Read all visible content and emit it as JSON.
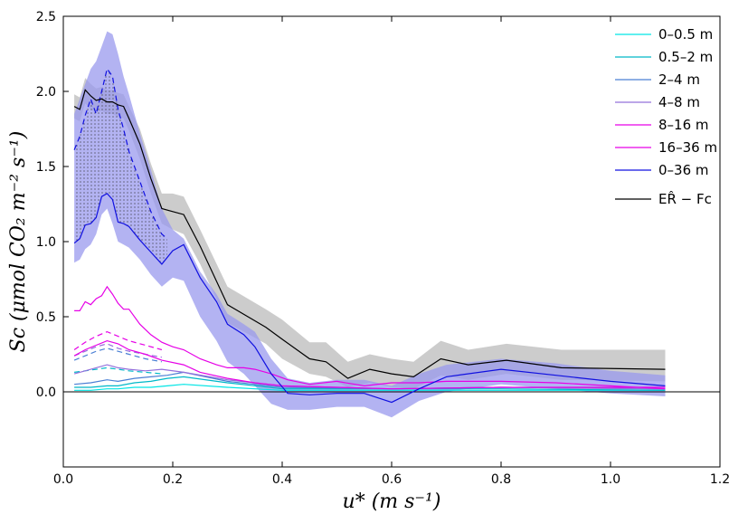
{
  "chart_data": {
    "type": "line",
    "xlabel": "u* (m s⁻¹)",
    "ylabel": "Sc (μmol CO₂ m⁻² s⁻¹)",
    "xlim": [
      0.0,
      1.2
    ],
    "ylim": [
      -0.5,
      2.5
    ],
    "xticks": [
      "0.0",
      "0.2",
      "0.4",
      "0.6",
      "0.8",
      "1.0",
      "1.2"
    ],
    "yticks": [
      "0.0",
      "0.5",
      "1.0",
      "1.5",
      "2.0",
      "2.5"
    ],
    "legend_position": "top-right",
    "zero_line": true,
    "series": [
      {
        "name": "0–0.5 m",
        "color": "#00e5e5",
        "style": "solid",
        "x": [
          0.02,
          0.05,
          0.08,
          0.1,
          0.13,
          0.16,
          0.19,
          0.22,
          0.3,
          0.4,
          0.6,
          0.8,
          1.1
        ],
        "y": [
          0.01,
          0.01,
          0.02,
          0.02,
          0.03,
          0.03,
          0.04,
          0.05,
          0.03,
          0.01,
          0.01,
          0.01,
          0.01
        ]
      },
      {
        "name": "0.5–2 m",
        "color": "#00b8c8",
        "style": "solid",
        "x": [
          0.02,
          0.05,
          0.08,
          0.1,
          0.13,
          0.16,
          0.19,
          0.22,
          0.3,
          0.4,
          0.6,
          0.8,
          1.1
        ],
        "y": [
          0.03,
          0.03,
          0.04,
          0.04,
          0.06,
          0.07,
          0.09,
          0.1,
          0.06,
          0.02,
          0.02,
          0.02,
          0.01
        ]
      },
      {
        "name": "2–4 m",
        "color": "#4a7fd4",
        "style": "solid",
        "x": [
          0.02,
          0.05,
          0.08,
          0.1,
          0.13,
          0.16,
          0.19,
          0.22,
          0.3,
          0.4,
          0.6,
          0.8,
          1.1
        ],
        "y": [
          0.05,
          0.06,
          0.08,
          0.07,
          0.09,
          0.1,
          0.11,
          0.13,
          0.07,
          0.03,
          0.02,
          0.03,
          0.02
        ]
      },
      {
        "name": "4–8 m",
        "color": "#9370db",
        "style": "solid",
        "x": [
          0.02,
          0.04,
          0.06,
          0.08,
          0.1,
          0.12,
          0.15,
          0.18,
          0.22,
          0.3,
          0.4,
          0.5,
          0.6,
          0.8,
          1.1
        ],
        "y": [
          0.12,
          0.14,
          0.16,
          0.18,
          0.16,
          0.15,
          0.14,
          0.15,
          0.13,
          0.08,
          0.04,
          0.03,
          0.02,
          0.03,
          0.02
        ]
      },
      {
        "name": "8–16 m",
        "color": "#e600e6",
        "style": "solid",
        "x": [
          0.02,
          0.04,
          0.06,
          0.08,
          0.1,
          0.12,
          0.15,
          0.18,
          0.22,
          0.25,
          0.3,
          0.35,
          0.4,
          0.5,
          0.6,
          0.8,
          1.1
        ],
        "y": [
          0.24,
          0.28,
          0.31,
          0.34,
          0.32,
          0.28,
          0.25,
          0.21,
          0.18,
          0.13,
          0.09,
          0.06,
          0.04,
          0.03,
          0.02,
          0.03,
          0.03
        ]
      },
      {
        "name": "16–36 m",
        "color": "#e600e6",
        "style": "solid",
        "x": [
          0.02,
          0.03,
          0.04,
          0.05,
          0.06,
          0.07,
          0.08,
          0.09,
          0.1,
          0.11,
          0.12,
          0.14,
          0.16,
          0.18,
          0.2,
          0.22,
          0.25,
          0.28,
          0.3,
          0.33,
          0.35,
          0.38,
          0.41,
          0.45,
          0.5,
          0.55,
          0.6,
          0.65,
          0.7,
          0.8,
          0.9,
          1.0,
          1.1
        ],
        "y": [
          0.54,
          0.54,
          0.6,
          0.58,
          0.62,
          0.64,
          0.7,
          0.65,
          0.59,
          0.55,
          0.55,
          0.45,
          0.38,
          0.33,
          0.3,
          0.28,
          0.22,
          0.18,
          0.16,
          0.16,
          0.15,
          0.12,
          0.08,
          0.05,
          0.07,
          0.04,
          0.06,
          0.06,
          0.07,
          0.07,
          0.06,
          0.04,
          0.02
        ]
      },
      {
        "name": "0–36 m",
        "color": "#1010e0",
        "style": "solid",
        "x": [
          0.02,
          0.03,
          0.04,
          0.05,
          0.06,
          0.07,
          0.08,
          0.09,
          0.1,
          0.11,
          0.12,
          0.14,
          0.16,
          0.18,
          0.2,
          0.22,
          0.25,
          0.28,
          0.3,
          0.33,
          0.35,
          0.38,
          0.41,
          0.45,
          0.5,
          0.55,
          0.6,
          0.65,
          0.7,
          0.8,
          0.9,
          1.0,
          1.1
        ],
        "y": [
          0.99,
          1.02,
          1.11,
          1.12,
          1.16,
          1.3,
          1.32,
          1.28,
          1.13,
          1.12,
          1.1,
          1.01,
          0.93,
          0.85,
          0.94,
          0.98,
          0.76,
          0.6,
          0.45,
          0.38,
          0.3,
          0.12,
          -0.01,
          -0.02,
          -0.01,
          -0.01,
          -0.07,
          0.02,
          0.1,
          0.15,
          0.11,
          0.07,
          0.04
        ],
        "band_lower": [
          0.86,
          0.88,
          0.95,
          0.98,
          1.05,
          1.18,
          1.22,
          1.12,
          1.0,
          0.98,
          0.96,
          0.88,
          0.78,
          0.7,
          0.76,
          0.74,
          0.5,
          0.34,
          0.2,
          0.12,
          0.04,
          -0.08,
          -0.12,
          -0.12,
          -0.1,
          -0.1,
          -0.17,
          -0.06,
          0.0,
          0.05,
          0.02,
          -0.01,
          -0.03
        ],
        "band_upper": [
          1.85,
          1.95,
          2.05,
          2.15,
          2.2,
          2.3,
          2.4,
          2.38,
          2.25,
          2.1,
          1.98,
          1.72,
          1.48,
          1.22,
          1.08,
          1.02,
          0.8,
          0.65,
          0.52,
          0.45,
          0.4,
          0.22,
          0.09,
          0.06,
          0.08,
          0.08,
          0.04,
          0.12,
          0.18,
          0.22,
          0.19,
          0.14,
          0.11
        ]
      },
      {
        "name": "ER̂ − Fc",
        "color": "#000000",
        "style": "solid",
        "x": [
          0.02,
          0.03,
          0.04,
          0.05,
          0.06,
          0.07,
          0.08,
          0.09,
          0.1,
          0.11,
          0.12,
          0.14,
          0.16,
          0.18,
          0.2,
          0.22,
          0.25,
          0.3,
          0.37,
          0.4,
          0.45,
          0.48,
          0.52,
          0.56,
          0.6,
          0.64,
          0.69,
          0.74,
          0.81,
          0.91,
          1.1
        ],
        "y": [
          1.9,
          1.88,
          2.01,
          1.97,
          1.94,
          1.95,
          1.93,
          1.93,
          1.91,
          1.9,
          1.82,
          1.65,
          1.42,
          1.22,
          1.2,
          1.18,
          0.97,
          0.58,
          0.43,
          0.35,
          0.22,
          0.2,
          0.09,
          0.15,
          0.12,
          0.1,
          0.22,
          0.18,
          0.21,
          0.16,
          0.15
        ],
        "band_lower": [
          1.82,
          1.8,
          1.92,
          1.88,
          1.86,
          1.87,
          1.85,
          1.85,
          1.83,
          1.82,
          1.74,
          1.55,
          1.32,
          1.12,
          1.08,
          1.05,
          0.85,
          0.46,
          0.32,
          0.22,
          0.12,
          0.1,
          0.03,
          0.06,
          0.03,
          0.02,
          0.11,
          0.08,
          0.12,
          0.08,
          0.07
        ],
        "band_upper": [
          1.98,
          1.96,
          2.09,
          2.05,
          2.02,
          2.03,
          2.01,
          2.01,
          1.99,
          1.98,
          1.9,
          1.75,
          1.52,
          1.32,
          1.32,
          1.3,
          1.08,
          0.7,
          0.55,
          0.48,
          0.33,
          0.33,
          0.2,
          0.25,
          0.22,
          0.2,
          0.34,
          0.28,
          0.32,
          0.28,
          0.28
        ]
      }
    ],
    "dashed_series": [
      {
        "color": "#1010e0",
        "x": [
          0.02,
          0.03,
          0.04,
          0.05,
          0.06,
          0.07,
          0.08,
          0.09,
          0.1,
          0.11,
          0.12,
          0.14,
          0.16,
          0.18,
          0.19
        ],
        "y": [
          1.61,
          1.7,
          1.84,
          1.95,
          1.85,
          2.0,
          2.15,
          2.1,
          1.88,
          1.75,
          1.6,
          1.4,
          1.2,
          1.05,
          1.02
        ]
      },
      {
        "color": "#e600e6",
        "x": [
          0.02,
          0.04,
          0.06,
          0.08,
          0.1,
          0.12,
          0.15,
          0.18
        ],
        "y": [
          0.28,
          0.33,
          0.37,
          0.4,
          0.37,
          0.34,
          0.31,
          0.28
        ]
      },
      {
        "color": "#9370db",
        "x": [
          0.02,
          0.04,
          0.06,
          0.08,
          0.1,
          0.12,
          0.15,
          0.18
        ],
        "y": [
          0.24,
          0.27,
          0.3,
          0.32,
          0.29,
          0.27,
          0.25,
          0.23
        ]
      },
      {
        "color": "#4a7fd4",
        "x": [
          0.02,
          0.04,
          0.06,
          0.08,
          0.1,
          0.12,
          0.15,
          0.18
        ],
        "y": [
          0.21,
          0.24,
          0.27,
          0.29,
          0.27,
          0.25,
          0.22,
          0.2
        ]
      },
      {
        "color": "#00b8c8",
        "x": [
          0.02,
          0.04,
          0.06,
          0.08,
          0.1,
          0.12,
          0.15,
          0.18
        ],
        "y": [
          0.13,
          0.14,
          0.15,
          0.16,
          0.15,
          0.14,
          0.13,
          0.12
        ]
      }
    ],
    "hatched_region": {
      "x": [
        0.02,
        0.03,
        0.04,
        0.05,
        0.06,
        0.07,
        0.08,
        0.09,
        0.1,
        0.11,
        0.12,
        0.14,
        0.16,
        0.18,
        0.19
      ],
      "upper": [
        1.61,
        1.7,
        1.84,
        1.95,
        1.85,
        2.0,
        2.15,
        2.1,
        1.88,
        1.75,
        1.6,
        1.4,
        1.2,
        1.05,
        1.02
      ],
      "lower": [
        0.99,
        1.02,
        1.11,
        1.12,
        1.16,
        1.3,
        1.32,
        1.28,
        1.13,
        1.12,
        1.1,
        1.01,
        0.93,
        0.85,
        0.9
      ]
    }
  },
  "colors": {
    "blue_band": "#9999ee",
    "gray_band": "#cccccc"
  }
}
